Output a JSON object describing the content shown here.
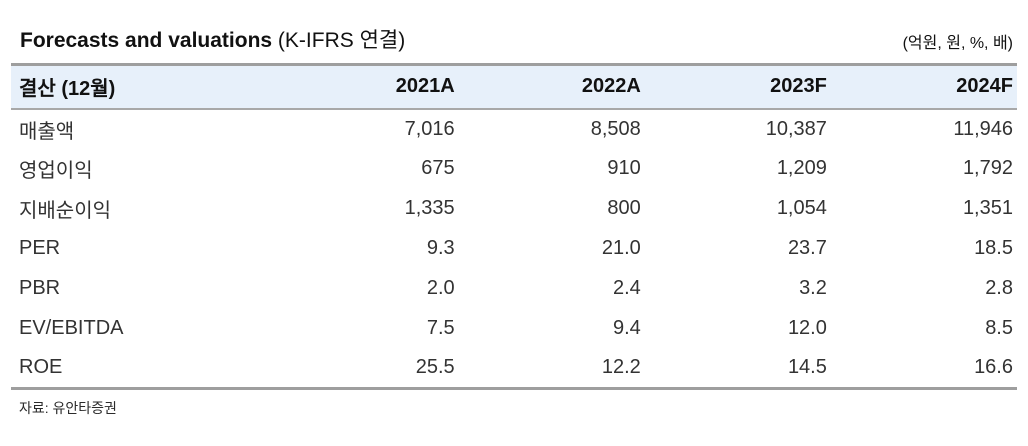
{
  "title": {
    "main": "Forecasts and valuations ",
    "sub": "(K-IFRS 연결)",
    "units": "(억원, 원, %, 배)"
  },
  "table": {
    "header": {
      "label": "결산 (12월)",
      "columns": [
        "2021A",
        "2022A",
        "2023F",
        "2024F"
      ]
    },
    "rows": [
      {
        "label": "매출액",
        "values": [
          "7,016",
          "8,508",
          "10,387",
          "11,946"
        ]
      },
      {
        "label": "영업이익",
        "values": [
          "675",
          "910",
          "1,209",
          "1,792"
        ]
      },
      {
        "label": "지배순이익",
        "values": [
          "1,335",
          "800",
          "1,054",
          "1,351"
        ]
      },
      {
        "label": "PER",
        "values": [
          "9.3",
          "21.0",
          "23.7",
          "18.5"
        ]
      },
      {
        "label": "PBR",
        "values": [
          "2.0",
          "2.4",
          "3.2",
          "2.8"
        ]
      },
      {
        "label": "EV/EBITDA",
        "values": [
          "7.5",
          "9.4",
          "12.0",
          "8.5"
        ]
      },
      {
        "label": "ROE",
        "values": [
          "25.5",
          "12.2",
          "14.5",
          "16.6"
        ]
      }
    ]
  },
  "footer": {
    "source": "자료: 유안타증권"
  },
  "colors": {
    "header_bg": "#e7f0fa",
    "rule": "#9e9e9e",
    "text": "#333333"
  }
}
